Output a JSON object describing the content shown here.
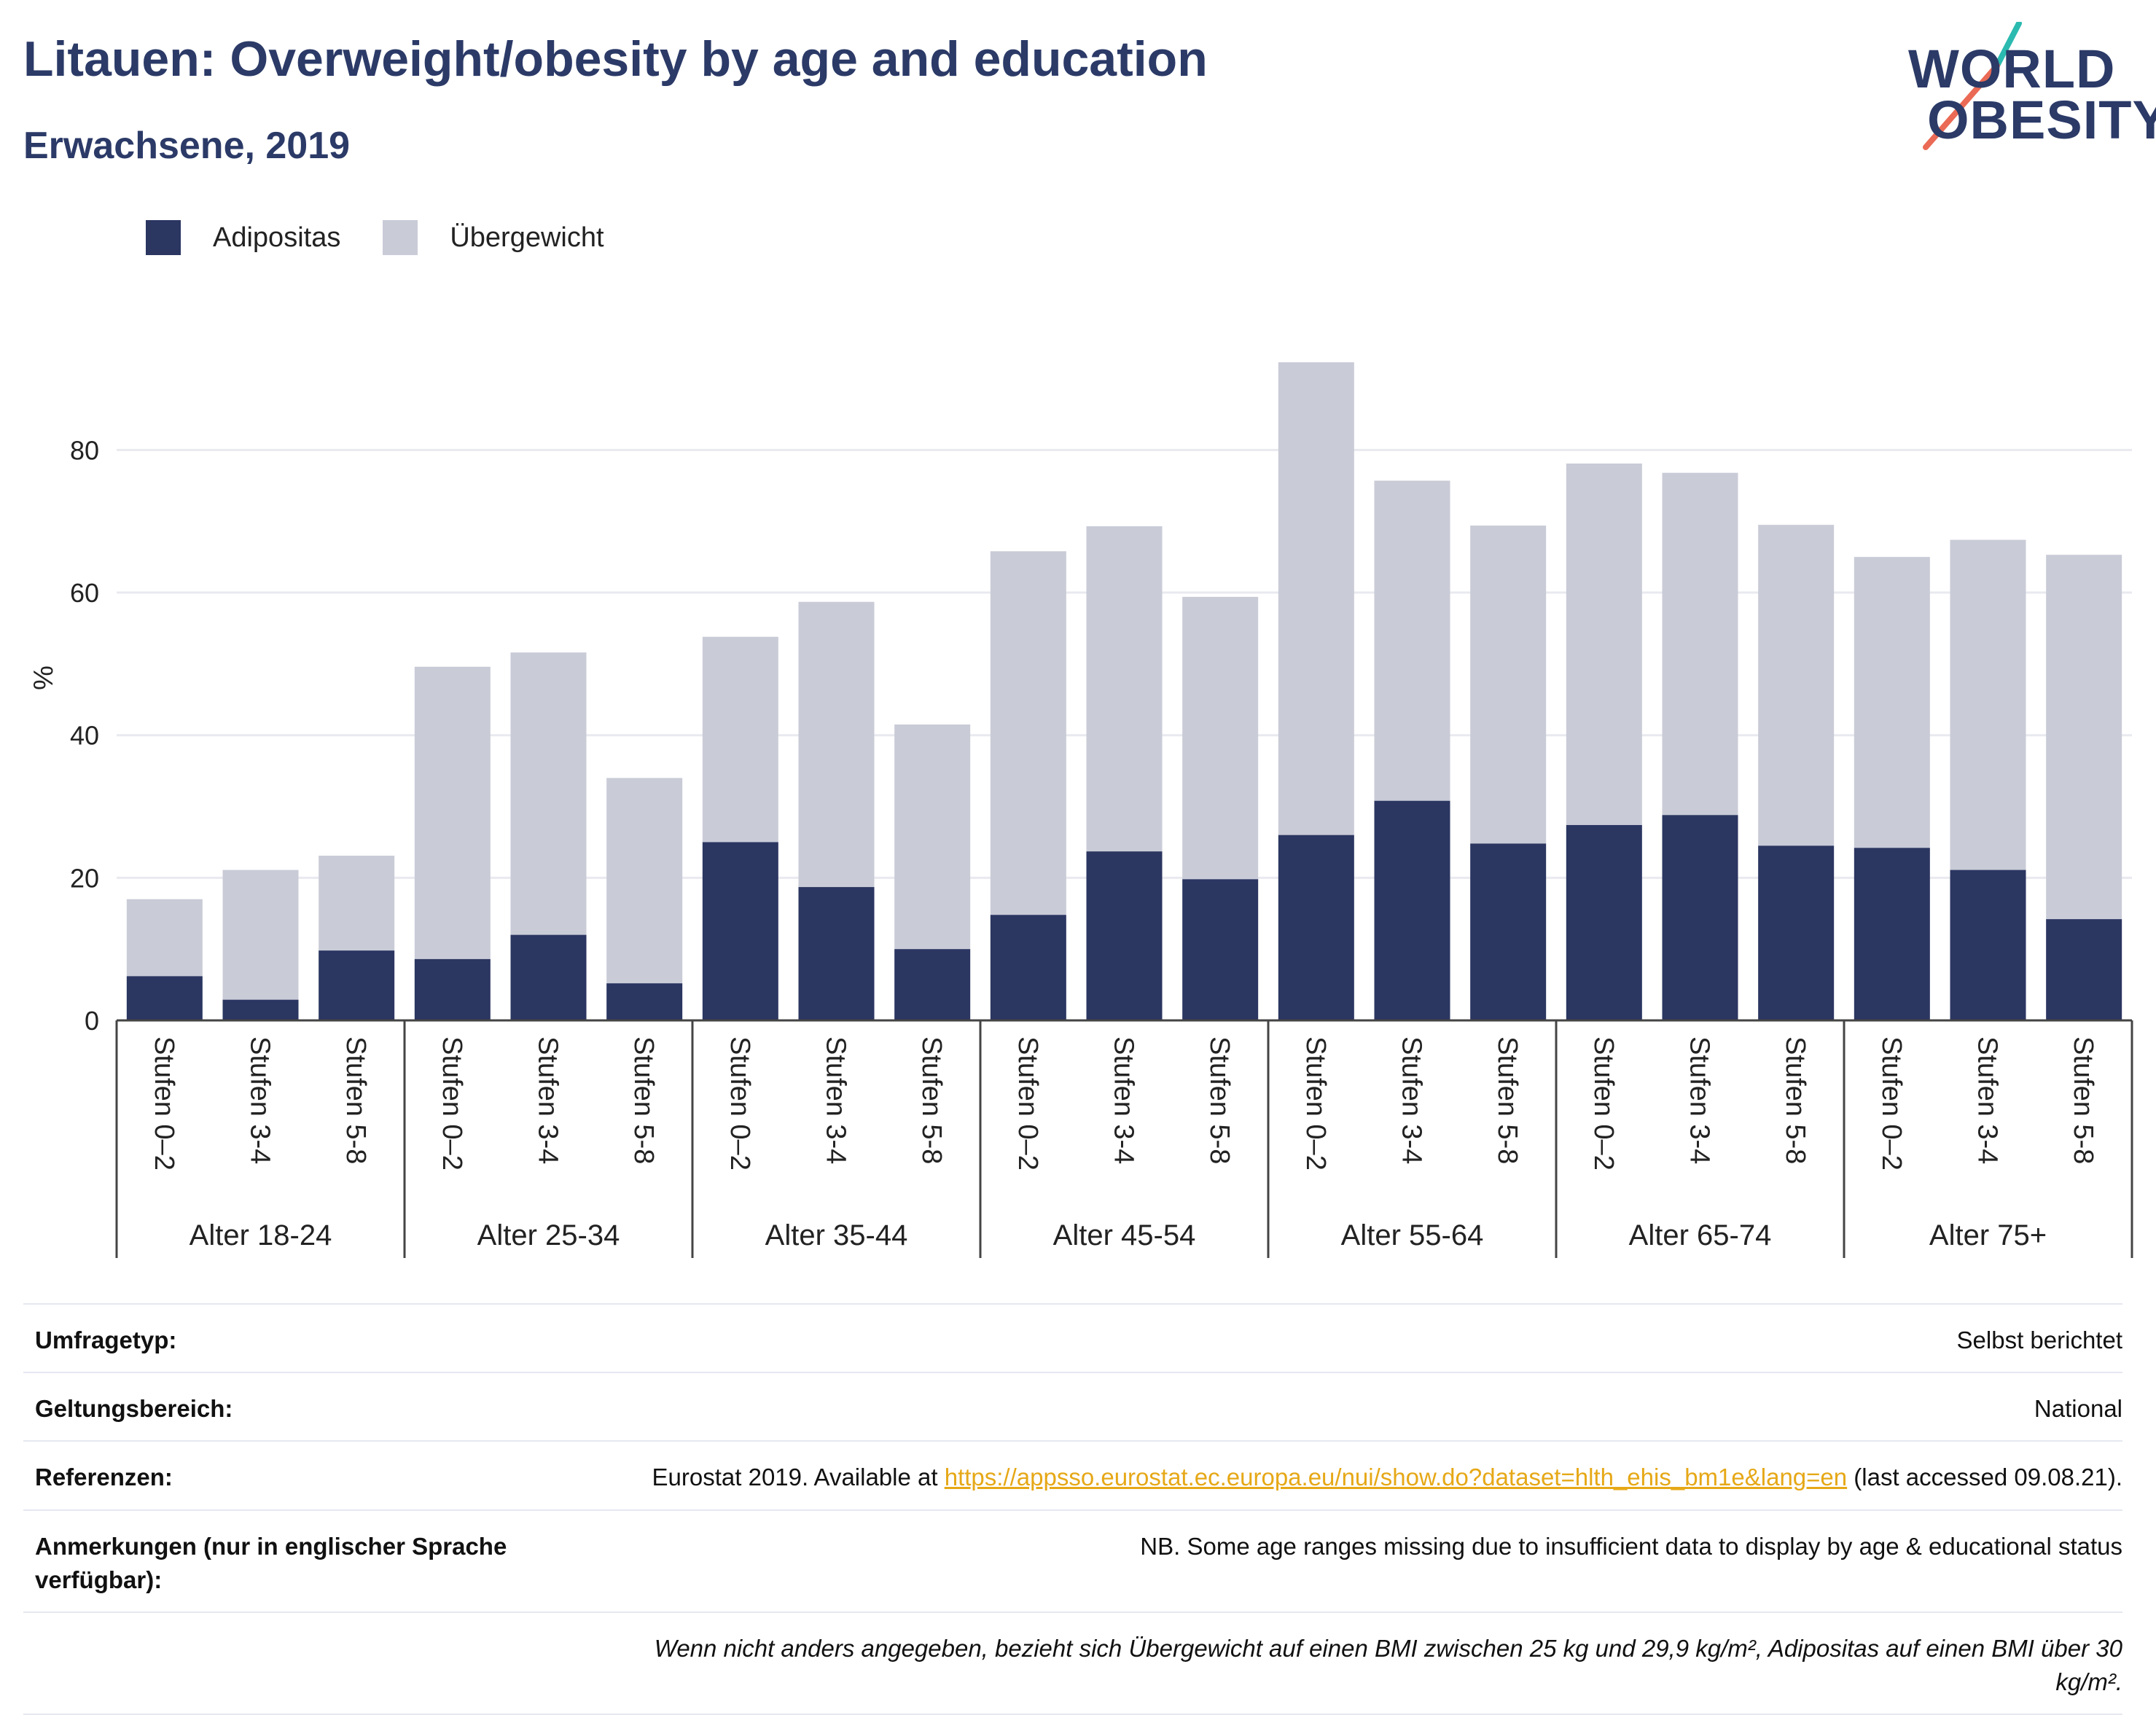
{
  "header": {
    "title": "Litauen: Overweight/obesity by age and education",
    "subtitle": "Erwachsene, 2019"
  },
  "logo": {
    "line1": "WORLD",
    "line2": "OBESITY"
  },
  "colors": {
    "obesity": "#2b3661",
    "overweight": "#c9cbd7",
    "grid": "#e9eaf0",
    "axis": "#444444",
    "accent_teal": "#2bbab0",
    "accent_coral": "#ea6a55"
  },
  "legend": [
    {
      "label": "Adipositas",
      "color": "#2b3661"
    },
    {
      "label": "Übergewicht",
      "color": "#c9cbd7"
    }
  ],
  "chart_data": {
    "type": "bar",
    "stacked": true,
    "ylabel": "%",
    "ylim": [
      0,
      92
    ],
    "yticks": [
      0,
      20,
      40,
      60,
      80
    ],
    "grid": true,
    "legend_position": "top-left",
    "groups": [
      "Alter 18-24",
      "Alter 25-34",
      "Alter 35-44",
      "Alter 45-54",
      "Alter 55-64",
      "Alter 65-74",
      "Alter 75+"
    ],
    "subcategories": [
      "Stufen 0–2",
      "Stufen 3-4",
      "Stufen 5-8"
    ],
    "series": [
      {
        "name": "Adipositas",
        "values": [
          6.2,
          2.9,
          9.8,
          8.6,
          12,
          5.2,
          25,
          18.7,
          10,
          14.8,
          23.7,
          19.8,
          26,
          30.8,
          24.8,
          27.4,
          28.8,
          24.5,
          24.2,
          21.1,
          14.2
        ]
      },
      {
        "name": "Übergewicht",
        "values": [
          10.8,
          18.2,
          13.3,
          41,
          39.6,
          28.8,
          28.8,
          40,
          31.5,
          51,
          45.6,
          39.6,
          66.3,
          44.9,
          44.6,
          50.7,
          48,
          45,
          40.8,
          46.3,
          51.1
        ]
      }
    ]
  },
  "info_table": {
    "survey_type_label": "Umfragetyp:",
    "survey_type_value": "Selbst berichtet",
    "scope_label": "Geltungsbereich:",
    "scope_value": "National",
    "references_label": "Referenzen:",
    "references_prefix": "Eurostat 2019. Available at ",
    "references_link": "https://appsso.eurostat.ec.europa.eu/nui/show.do?dataset=hlth_ehis_bm1e&lang=en",
    "references_suffix": " (last accessed 09.08.21).",
    "notes_label": "Anmerkungen (nur in englischer Sprache verfügbar):",
    "notes_value": "NB. Some age ranges missing due to insufficient data to display by age & educational status",
    "footnote": "Wenn nicht anders angegeben, bezieht sich Übergewicht auf einen BMI zwischen 25 kg und 29,9 kg/m², Adipositas auf einen BMI über 30 kg/m²."
  }
}
